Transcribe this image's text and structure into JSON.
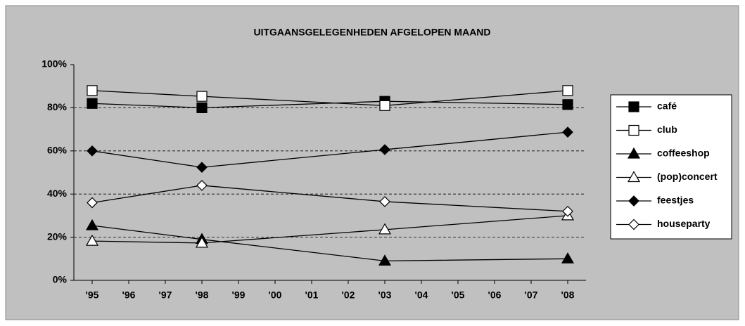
{
  "chart_data": {
    "type": "line",
    "title": "UITGAANSGELEGENHEDEN AFGELOPEN MAAND",
    "x": [
      1995,
      1998,
      2003,
      2008
    ],
    "xlim": [
      1994.5,
      2008.5
    ],
    "xticks": [
      {
        "value": 1995,
        "label": "'95"
      },
      {
        "value": 1996,
        "label": "'96"
      },
      {
        "value": 1997,
        "label": "'97"
      },
      {
        "value": 1998,
        "label": "'98"
      },
      {
        "value": 1999,
        "label": "'99"
      },
      {
        "value": 2000,
        "label": "'00"
      },
      {
        "value": 2001,
        "label": "'01"
      },
      {
        "value": 2002,
        "label": "'02"
      },
      {
        "value": 2003,
        "label": "'03"
      },
      {
        "value": 2004,
        "label": "'04"
      },
      {
        "value": 2005,
        "label": "'05"
      },
      {
        "value": 2006,
        "label": "'06"
      },
      {
        "value": 2007,
        "label": "'07"
      },
      {
        "value": 2008,
        "label": "'08"
      }
    ],
    "ylim": [
      0,
      100
    ],
    "yticks": [
      {
        "value": 0,
        "label": "0%"
      },
      {
        "value": 20,
        "label": "20%"
      },
      {
        "value": 40,
        "label": "40%"
      },
      {
        "value": 60,
        "label": "60%"
      },
      {
        "value": 80,
        "label": "80%"
      },
      {
        "value": 100,
        "label": "100%"
      }
    ],
    "grid": true,
    "legend": "right",
    "series": [
      {
        "name": "café",
        "color": "#000000",
        "marker": "square",
        "fill": "#000000",
        "values": [
          82,
          80,
          83,
          81.5
        ]
      },
      {
        "name": "club",
        "color": "#000000",
        "marker": "square",
        "fill": "#ffffff",
        "values": [
          88,
          85.3,
          81,
          88
        ]
      },
      {
        "name": "coffeeshop",
        "color": "#000000",
        "marker": "triangle",
        "fill": "#000000",
        "values": [
          25.4,
          19,
          9,
          10
        ]
      },
      {
        "name": "(pop)concert",
        "color": "#000000",
        "marker": "triangle",
        "fill": "#ffffff",
        "values": [
          18.2,
          17.3,
          23.5,
          30
        ]
      },
      {
        "name": "feestjes",
        "color": "#000000",
        "marker": "diamond",
        "fill": "#000000",
        "values": [
          60,
          52.4,
          60.6,
          68.7
        ]
      },
      {
        "name": "houseparty",
        "color": "#000000",
        "marker": "diamond",
        "fill": "#ffffff",
        "values": [
          36,
          44,
          36.5,
          32
        ]
      }
    ]
  }
}
